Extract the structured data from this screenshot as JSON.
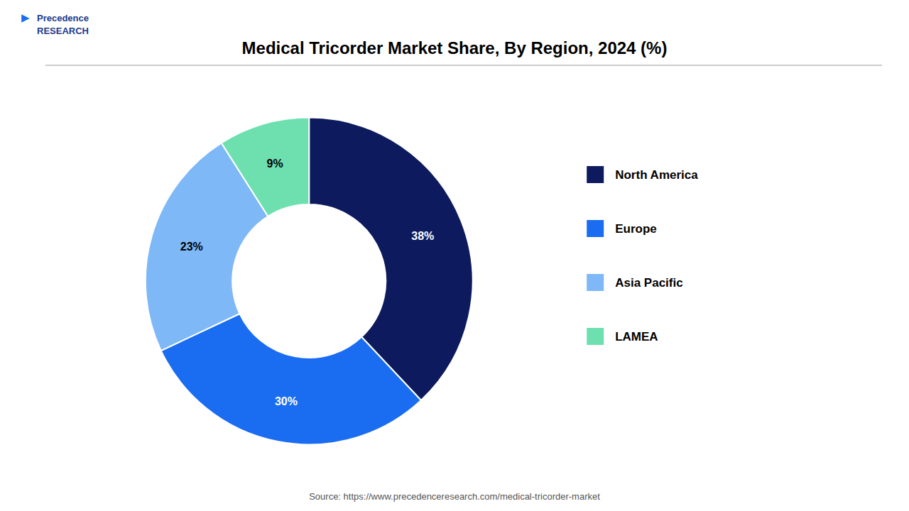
{
  "chart_data": {
    "type": "donut",
    "title": "Medical Tricorder Market Share, By Region, 2024 (%)",
    "categories": [
      "North America",
      "Europe",
      "Asia Pacific",
      "LAMEA"
    ],
    "values": [
      38,
      30,
      23,
      9
    ],
    "value_labels": [
      "38%",
      "30%",
      "23%",
      "9%"
    ],
    "colors": [
      "#0d1b5e",
      "#1a6df0",
      "#7eb8f7",
      "#6ee0b0"
    ],
    "data_labels": true,
    "legend": "right",
    "annotations": [
      "Source: https://www.precedenceresearch.com/medical-tricorder-market",
      "Precedence\nRESEARCH",
      "▶"
    ]
  }
}
